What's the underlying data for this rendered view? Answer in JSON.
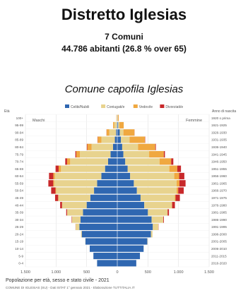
{
  "header": {
    "title": "Distretto Iglesias",
    "subtitle_comuni": "7 Comuni",
    "subtitle_population": "44.786 abitanti (26.8 % over 65)",
    "capofila": "Comune capofila Iglesias"
  },
  "chart_data": {
    "type": "bar",
    "orientation": "horizontal-population-pyramid",
    "legend": [
      "Celibi/Nubili",
      "Coniugati/e",
      "Vedovi/e",
      "Divorziati/e"
    ],
    "legend_colors": [
      "#2f67b1",
      "#e8d38e",
      "#f0a840",
      "#c8282a"
    ],
    "side_labels": {
      "left": "Maschi",
      "right": "Femmine"
    },
    "age_axis_title": "Età",
    "year_axis_title": "Anno di nascita",
    "age_groups": [
      "0-4",
      "5-9",
      "10-14",
      "15-19",
      "20-24",
      "25-29",
      "30-34",
      "35-39",
      "40-44",
      "45-49",
      "50-54",
      "55-59",
      "60-64",
      "65-69",
      "70-74",
      "75-79",
      "80-84",
      "85-89",
      "90-94",
      "95-99",
      "100+"
    ],
    "birth_years": [
      "2016-2020",
      "2011-2015",
      "2006-2010",
      "2001-2005",
      "1996-2000",
      "1991-1995",
      "1986-1990",
      "1981-1985",
      "1976-1980",
      "1971-1975",
      "1966-1970",
      "1961-1965",
      "1956-1960",
      "1951-1955",
      "1946-1950",
      "1941-1945",
      "1936-1940",
      "1931-1935",
      "1926-1930",
      "1921-1925",
      "1920 o prima"
    ],
    "xlim": [
      -1500,
      1500
    ],
    "x_ticks": [
      "1.500",
      "1.000",
      "500",
      "0",
      "500",
      "1.000",
      "1.500"
    ],
    "x_tick_values": [
      -1500,
      -1000,
      -500,
      0,
      500,
      1000,
      1500
    ],
    "males": {
      "Celibi/Nubili": [
        330,
        390,
        450,
        520,
        580,
        620,
        600,
        560,
        500,
        440,
        380,
        330,
        260,
        200,
        150,
        110,
        70,
        40,
        20,
        8,
        2
      ],
      "Coniugati/e": [
        0,
        0,
        0,
        2,
        12,
        60,
        140,
        260,
        400,
        520,
        620,
        700,
        760,
        720,
        620,
        500,
        350,
        220,
        110,
        40,
        8
      ],
      "Vedovi/e": [
        0,
        0,
        0,
        0,
        0,
        0,
        0,
        0,
        3,
        6,
        10,
        16,
        25,
        38,
        50,
        60,
        70,
        60,
        45,
        20,
        5
      ],
      "Divorziati/e": [
        0,
        0,
        0,
        0,
        0,
        2,
        6,
        14,
        30,
        50,
        70,
        80,
        70,
        50,
        30,
        15,
        8,
        4,
        2,
        0,
        0
      ]
    },
    "females": {
      "Celibi/Nubili": [
        310,
        370,
        430,
        490,
        550,
        580,
        560,
        500,
        440,
        380,
        320,
        270,
        210,
        170,
        130,
        100,
        80,
        60,
        40,
        15,
        5
      ],
      "Coniugati/e": [
        0,
        0,
        0,
        4,
        25,
        90,
        190,
        320,
        450,
        560,
        650,
        700,
        720,
        680,
        560,
        420,
        260,
        140,
        60,
        20,
        3
      ],
      "Vedovi/e": [
        0,
        0,
        0,
        0,
        0,
        0,
        0,
        2,
        6,
        12,
        25,
        45,
        80,
        130,
        190,
        240,
        280,
        250,
        180,
        70,
        15
      ],
      "Divorziati/e": [
        0,
        0,
        0,
        0,
        0,
        3,
        10,
        22,
        45,
        70,
        90,
        100,
        85,
        60,
        35,
        18,
        10,
        5,
        2,
        0,
        0
      ]
    },
    "caption": "Popolazione per età, sesso e stato civile - 2021",
    "source": "COMUNE DI IGLESIAS (SU) - Dati ISTAT 1° gennaio 2021 - Elaborazione TUTTITALIA.IT",
    "grid": true
  }
}
